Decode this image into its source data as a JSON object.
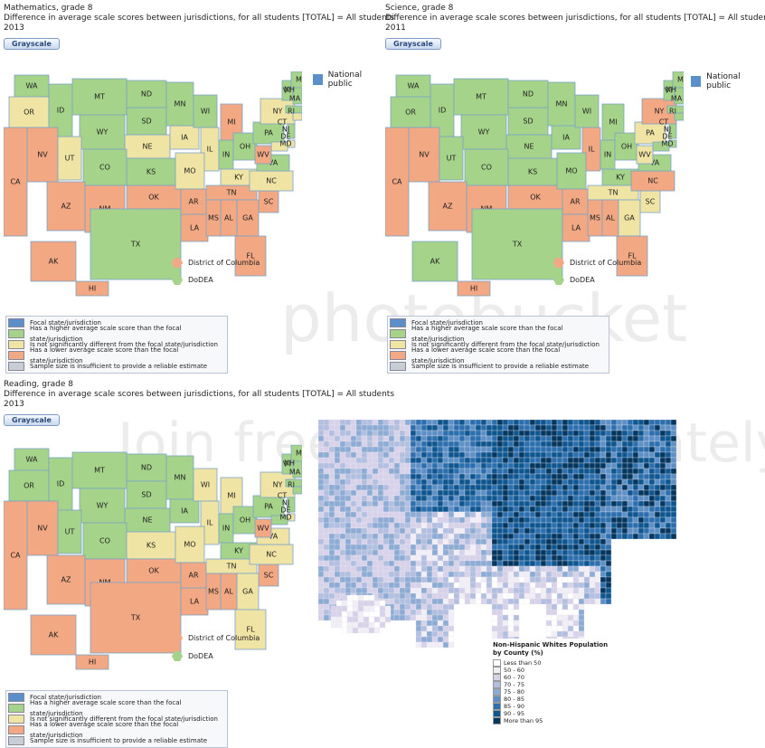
{
  "panels": [
    {
      "title": "Mathematics, grade 8",
      "subtitle": "Difference in average scale scores between jurisdictions, for all students [TOTAL] = All students",
      "year": "2013",
      "button": "Grayscale",
      "national_public_label": "National public",
      "states": {
        "WA": "higher",
        "OR": "same",
        "ID": "higher",
        "MT": "higher",
        "WY": "higher",
        "ND": "higher",
        "SD": "higher",
        "MN": "higher",
        "NE": "same",
        "IA": "same",
        "WI": "higher",
        "MI": "lower",
        "IL": "same",
        "IN": "higher",
        "OH": "higher",
        "PA": "higher",
        "NY": "same",
        "VT": "higher",
        "NH": "higher",
        "ME": "higher",
        "MA": "higher",
        "RI": "same",
        "CT": "same",
        "NJ": "higher",
        "DE": "same",
        "MD": "same",
        "NV": "lower",
        "CA": "lower",
        "UT": "same",
        "CO": "higher",
        "AZ": "lower",
        "NM": "lower",
        "KS": "higher",
        "OK": "lower",
        "TX": "higher",
        "MO": "same",
        "AR": "lower",
        "LA": "lower",
        "KY": "same",
        "TN": "lower",
        "MS": "lower",
        "AL": "lower",
        "GA": "lower",
        "FL": "lower",
        "SC": "lower",
        "NC": "same",
        "VA": "higher",
        "WV": "lower",
        "AK": "lower",
        "HI": "lower"
      },
      "dc_label": "District of Columbia",
      "dc_status": "lower",
      "dodea_label": "DoDEA",
      "dodea_status": "higher"
    },
    {
      "title": "Science, grade 8",
      "subtitle": "Difference in average scale scores between jurisdictions, for all students [TOTAL] = All students",
      "year": "2011",
      "button": "Grayscale",
      "national_public_label": "National public",
      "states": {
        "WA": "higher",
        "OR": "higher",
        "ID": "higher",
        "MT": "higher",
        "WY": "higher",
        "ND": "higher",
        "SD": "higher",
        "MN": "higher",
        "NE": "higher",
        "IA": "higher",
        "WI": "higher",
        "MI": "higher",
        "IL": "lower",
        "IN": "higher",
        "OH": "higher",
        "PA": "same",
        "NY": "lower",
        "VT": "higher",
        "NH": "higher",
        "ME": "higher",
        "MA": "higher",
        "RI": "lower",
        "CT": "higher",
        "NJ": "higher",
        "DE": "higher",
        "MD": "higher",
        "NV": "lower",
        "CA": "lower",
        "UT": "higher",
        "CO": "higher",
        "AZ": "lower",
        "NM": "lower",
        "KS": "higher",
        "OK": "lower",
        "TX": "higher",
        "MO": "higher",
        "AR": "lower",
        "LA": "lower",
        "KY": "higher",
        "TN": "same",
        "MS": "lower",
        "AL": "lower",
        "GA": "same",
        "FL": "lower",
        "SC": "same",
        "NC": "lower",
        "VA": "higher",
        "WV": "same",
        "AK": "higher",
        "HI": "lower"
      },
      "dc_label": "District of Columbia",
      "dc_status": "lower",
      "dodea_label": "DoDEA",
      "dodea_status": "higher"
    },
    {
      "title": "Reading, grade 8",
      "subtitle": "Difference in average scale scores between jurisdictions, for all students [TOTAL] = All students",
      "year": "2013",
      "button": "Grayscale",
      "national_public_label": "",
      "states": {
        "WA": "higher",
        "OR": "higher",
        "ID": "higher",
        "MT": "higher",
        "WY": "higher",
        "ND": "higher",
        "SD": "higher",
        "MN": "higher",
        "NE": "higher",
        "IA": "higher",
        "WI": "same",
        "MI": "same",
        "IL": "same",
        "IN": "higher",
        "OH": "higher",
        "PA": "higher",
        "NY": "same",
        "VT": "higher",
        "NH": "higher",
        "ME": "higher",
        "MA": "higher",
        "RI": "same",
        "CT": "higher",
        "NJ": "higher",
        "DE": "same",
        "MD": "higher",
        "NV": "lower",
        "CA": "lower",
        "UT": "higher",
        "CO": "higher",
        "AZ": "lower",
        "NM": "lower",
        "KS": "same",
        "OK": "lower",
        "TX": "lower",
        "MO": "same",
        "AR": "lower",
        "LA": "lower",
        "KY": "higher",
        "TN": "same",
        "MS": "lower",
        "AL": "lower",
        "GA": "same",
        "FL": "same",
        "SC": "lower",
        "NC": "same",
        "VA": "same",
        "WV": "lower",
        "AK": "lower",
        "HI": "lower"
      },
      "dc_label": "District of Columbia",
      "dc_status": "lower",
      "dodea_label": "DoDEA",
      "dodea_status": "higher"
    }
  ],
  "legend": [
    {
      "key": "focal",
      "label": "Focal  state/jurisdiction"
    },
    {
      "key": "higher",
      "label": "Has a higher average scale score than the focal state/jurisdiction"
    },
    {
      "key": "same",
      "label": "Is not significantly different from the focal  state/jurisdiction"
    },
    {
      "key": "lower",
      "label": "Has a lower average scale score than the focal state/jurisdiction"
    },
    {
      "key": "insufficient",
      "label": "Sample size is insufficient to provide a reliable estimate"
    }
  ],
  "colors": {
    "focal": "#5b8fc9",
    "higher": "#a5d389",
    "same": "#f0e4a4",
    "lower": "#f2a883",
    "insufficient": "#c8ced6",
    "border": "#7aa3c9"
  },
  "population_map": {
    "title": "Non-Hispanic Whites Population by County (%)",
    "bins": [
      {
        "label": "Less than 50",
        "color": "#ffffff"
      },
      {
        "label": "50 - 60",
        "color": "#f1eef6"
      },
      {
        "label": "60 - 70",
        "color": "#d7d2ea"
      },
      {
        "label": "70 - 75",
        "color": "#b3bfe0"
      },
      {
        "label": "75 - 80",
        "color": "#8cacd5"
      },
      {
        "label": "80 - 85",
        "color": "#5e8fc5"
      },
      {
        "label": "85 - 90",
        "color": "#2b6fae"
      },
      {
        "label": "90 - 95",
        "color": "#0d5690"
      },
      {
        "label": "More than 95",
        "color": "#05365e"
      }
    ]
  }
}
